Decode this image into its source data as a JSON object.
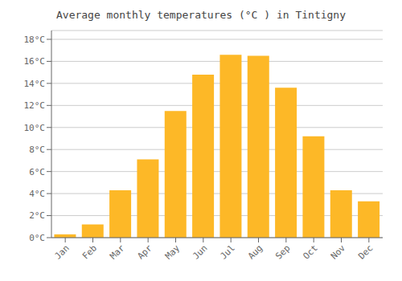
{
  "chart_data": {
    "type": "bar",
    "title": "Average monthly temperatures (°C ) in Tintigny",
    "categories": [
      "Jan",
      "Feb",
      "Mar",
      "Apr",
      "May",
      "Jun",
      "Jul",
      "Aug",
      "Sep",
      "Oct",
      "Nov",
      "Dec"
    ],
    "values": [
      0.3,
      1.2,
      4.3,
      7.1,
      11.5,
      14.8,
      16.6,
      16.5,
      13.6,
      9.2,
      4.3,
      3.3
    ],
    "color": "#FDB827",
    "ylim": [
      0,
      18.8
    ],
    "yticks": [
      {
        "value": 0,
        "label": "0°C"
      },
      {
        "value": 2,
        "label": "2°C"
      },
      {
        "value": 4,
        "label": "4°C"
      },
      {
        "value": 6,
        "label": "6°C"
      },
      {
        "value": 8,
        "label": "8°C"
      },
      {
        "value": 10,
        "label": "10°C"
      },
      {
        "value": 12,
        "label": "12°C"
      },
      {
        "value": 14,
        "label": "14°C"
      },
      {
        "value": 16,
        "label": "16°C"
      },
      {
        "value": 18,
        "label": "18°C"
      }
    ],
    "grid": true
  }
}
